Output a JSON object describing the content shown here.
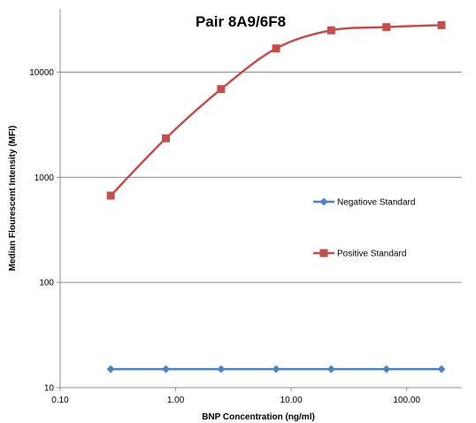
{
  "chart_data": {
    "type": "line",
    "title": "Pair 8A9/6F8",
    "xlabel": "BNP Concentration (ng/ml)",
    "ylabel": "Median Flourescent Intensity (MFI)",
    "x_scale": "log",
    "y_scale": "log",
    "xlim": [
      0.1,
      300
    ],
    "ylim": [
      10,
      40000
    ],
    "x_ticks": [
      "0.10",
      "1.00",
      "10.00",
      "100.00"
    ],
    "y_ticks": [
      "10",
      "100",
      "1000",
      "10000"
    ],
    "grid": "horizontal major gridlines",
    "legend_position": "right",
    "series": [
      {
        "name": "Negatiove Standard",
        "color": "#4f81bd",
        "marker": "diamond",
        "smooth": false,
        "x": [
          0.274,
          0.823,
          2.47,
          7.41,
          22.2,
          66.7,
          200
        ],
        "y": [
          15,
          15,
          15,
          15,
          15,
          15,
          15
        ]
      },
      {
        "name": "Positive Standard",
        "color": "#c0504d",
        "marker": "square",
        "smooth": true,
        "x": [
          0.274,
          0.823,
          2.47,
          7.41,
          22.2,
          66.7,
          200
        ],
        "y": [
          670,
          2350,
          6900,
          16800,
          25000,
          26800,
          28000
        ]
      }
    ]
  }
}
